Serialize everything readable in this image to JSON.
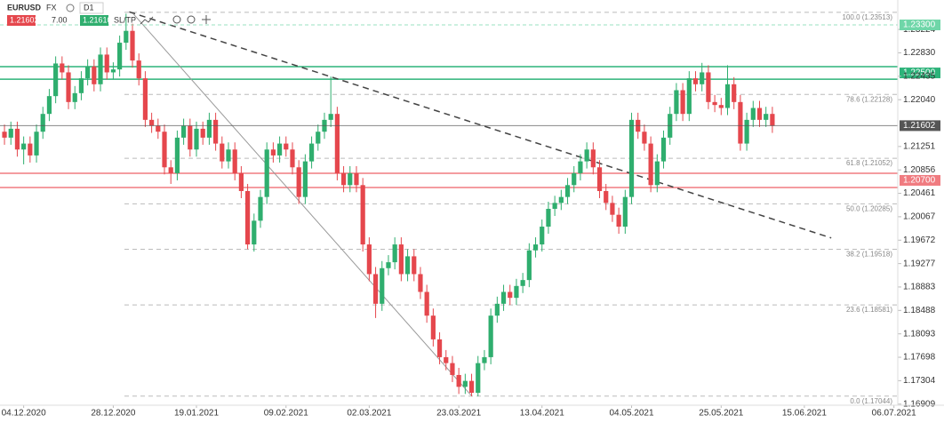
{
  "toolbar": {
    "symbol": "EURUSD",
    "market": "FX",
    "timeframe": "D1",
    "bid": "1.21602",
    "spread": "7.00",
    "ask": "1.21610",
    "sltp": "SL/TP"
  },
  "chart_data": {
    "type": "candlestick",
    "up_color": "#2fae6e",
    "down_color": "#e5474d",
    "xlim": [
      -0.7,
      139.6
    ],
    "ylim": [
      1.1689,
      1.2372
    ],
    "yticks": [
      1.23224,
      1.2283,
      1.22435,
      1.2204,
      1.21251,
      1.20856,
      1.20461,
      1.20067,
      1.19672,
      1.19277,
      1.18883,
      1.18488,
      1.18093,
      1.17698,
      1.17304,
      1.16909
    ],
    "ytick_labels": [
      "1.23224",
      "1.22830",
      "1.22435",
      "1.22040",
      "1.21251",
      "1.20856",
      "1.20461",
      "1.20067",
      "1.19672",
      "1.19277",
      "1.18883",
      "1.18488",
      "1.18093",
      "1.17698",
      "1.17304",
      "1.16909"
    ],
    "xticks": [
      {
        "value": 3,
        "label": "04.12.2020"
      },
      {
        "value": 17,
        "label": "28.12.2020"
      },
      {
        "value": 30,
        "label": "19.01.2021"
      },
      {
        "value": 44,
        "label": "09.02.2021"
      },
      {
        "value": 57,
        "label": "02.03.2021"
      },
      {
        "value": 71,
        "label": "23.03.2021"
      },
      {
        "value": 84,
        "label": "13.04.2021"
      },
      {
        "value": 98,
        "label": "04.05.2021"
      },
      {
        "value": 112,
        "label": "25.05.2021"
      },
      {
        "value": 125,
        "label": "15.06.2021"
      },
      {
        "value": 139,
        "label": "06.07.2021"
      }
    ],
    "fibonacci": [
      {
        "value": 1.23513,
        "label": "100.0 (1.23513)"
      },
      {
        "value": 1.22128,
        "label": "78.6 (1.22128)"
      },
      {
        "value": 1.21052,
        "label": "61.8 (1.21052)"
      },
      {
        "value": 1.20285,
        "label": "50.0 (1.20285)"
      },
      {
        "value": 1.19518,
        "label": "38.2 (1.19518)"
      },
      {
        "value": 1.18581,
        "label": "23.6 (1.18581)"
      },
      {
        "value": 1.17044,
        "label": "0.0 (1.17044)"
      }
    ],
    "price_lines": [
      {
        "value": 1.233,
        "label": "1.23300",
        "color": "#6fd6a8",
        "dashed": true
      },
      {
        "value": 1.21602,
        "label": "1.21602",
        "color": "#555555",
        "dashed": false
      }
    ],
    "zones": [
      {
        "low": 1.22386,
        "high": 1.22596,
        "label": "1.22500",
        "color": "#2db37a"
      },
      {
        "low": 1.2056,
        "high": 1.208,
        "label": "1.20700",
        "color": "#f07b80"
      }
    ],
    "trendlines": [
      {
        "points": [
          [
            19.5,
            1.2352
          ],
          [
            129.2,
            1.1971
          ]
        ],
        "dashed": true
      },
      {
        "points": [
          [
            20.1,
            1.2349
          ],
          [
            72.9,
            1.1706
          ]
        ],
        "dashed": false
      }
    ],
    "candles": [
      [
        1.215,
        1.2162,
        1.2128,
        1.214
      ],
      [
        1.214,
        1.2167,
        1.2128,
        1.2155
      ],
      [
        1.2155,
        1.2167,
        1.2108,
        1.212
      ],
      [
        1.212,
        1.2142,
        1.2095,
        1.213
      ],
      [
        1.213,
        1.2142,
        1.2098,
        1.211
      ],
      [
        1.211,
        1.2162,
        1.2098,
        1.215
      ],
      [
        1.215,
        1.2192,
        1.2138,
        1.218
      ],
      [
        1.218,
        1.2222,
        1.2168,
        1.221
      ],
      [
        1.221,
        1.2277,
        1.2198,
        1.2265
      ],
      [
        1.2265,
        1.2277,
        1.2238,
        1.225
      ],
      [
        1.225,
        1.2262,
        1.2188,
        1.22
      ],
      [
        1.22,
        1.2227,
        1.2188,
        1.2215
      ],
      [
        1.2215,
        1.2252,
        1.2203,
        1.224
      ],
      [
        1.224,
        1.2272,
        1.2228,
        1.226
      ],
      [
        1.226,
        1.2272,
        1.2218,
        1.223
      ],
      [
        1.223,
        1.2292,
        1.2218,
        1.228
      ],
      [
        1.228,
        1.2292,
        1.2238,
        1.225
      ],
      [
        1.225,
        1.2267,
        1.2238,
        1.2255
      ],
      [
        1.2255,
        1.2312,
        1.2243,
        1.23
      ],
      [
        1.23,
        1.2349,
        1.2288,
        1.232
      ],
      [
        1.232,
        1.2332,
        1.2258,
        1.227
      ],
      [
        1.227,
        1.2282,
        1.2228,
        1.224
      ],
      [
        1.224,
        1.2252,
        1.2158,
        1.217
      ],
      [
        1.217,
        1.2182,
        1.2148,
        1.216
      ],
      [
        1.216,
        1.2172,
        1.2138,
        1.215
      ],
      [
        1.215,
        1.2162,
        1.2078,
        1.209
      ],
      [
        1.209,
        1.2102,
        1.2062,
        1.208
      ],
      [
        1.208,
        1.2152,
        1.2068,
        1.214
      ],
      [
        1.214,
        1.2172,
        1.2128,
        1.216
      ],
      [
        1.216,
        1.2172,
        1.2108,
        1.212
      ],
      [
        1.212,
        1.2167,
        1.2108,
        1.2155
      ],
      [
        1.2155,
        1.2167,
        1.2128,
        1.214
      ],
      [
        1.214,
        1.2182,
        1.2128,
        1.217
      ],
      [
        1.217,
        1.2182,
        1.2118,
        1.213
      ],
      [
        1.213,
        1.2142,
        1.2088,
        1.21
      ],
      [
        1.21,
        1.2132,
        1.2088,
        1.212
      ],
      [
        1.212,
        1.2132,
        1.2068,
        1.208
      ],
      [
        1.208,
        1.2092,
        1.2038,
        1.205
      ],
      [
        1.205,
        1.2062,
        1.1952,
        1.196
      ],
      [
        1.196,
        1.2012,
        1.1948,
        1.2
      ],
      [
        1.2,
        1.2052,
        1.1988,
        1.204
      ],
      [
        1.204,
        1.2132,
        1.2028,
        1.212
      ],
      [
        1.212,
        1.2132,
        1.2098,
        1.211
      ],
      [
        1.211,
        1.2142,
        1.2098,
        1.213
      ],
      [
        1.213,
        1.2142,
        1.2108,
        1.212
      ],
      [
        1.212,
        1.2132,
        1.2078,
        1.209
      ],
      [
        1.209,
        1.2102,
        1.2028,
        1.204
      ],
      [
        1.204,
        1.2112,
        1.2028,
        1.21
      ],
      [
        1.21,
        1.2142,
        1.2088,
        1.213
      ],
      [
        1.213,
        1.2162,
        1.2118,
        1.215
      ],
      [
        1.215,
        1.2182,
        1.2138,
        1.217
      ],
      [
        1.217,
        1.2243,
        1.2158,
        1.218
      ],
      [
        1.218,
        1.2192,
        1.2068,
        1.208
      ],
      [
        1.208,
        1.2092,
        1.2048,
        1.206
      ],
      [
        1.206,
        1.2092,
        1.2048,
        1.208
      ],
      [
        1.208,
        1.2092,
        1.2048,
        1.206
      ],
      [
        1.206,
        1.2072,
        1.1948,
        1.196
      ],
      [
        1.196,
        1.1972,
        1.1898,
        1.191
      ],
      [
        1.191,
        1.1922,
        1.1836,
        1.186
      ],
      [
        1.186,
        1.1932,
        1.1848,
        1.192
      ],
      [
        1.192,
        1.1942,
        1.1908,
        1.193
      ],
      [
        1.193,
        1.1972,
        1.1918,
        1.196
      ],
      [
        1.196,
        1.1972,
        1.1898,
        1.191
      ],
      [
        1.191,
        1.1952,
        1.1898,
        1.194
      ],
      [
        1.194,
        1.1952,
        1.1898,
        1.191
      ],
      [
        1.191,
        1.1922,
        1.1868,
        1.188
      ],
      [
        1.188,
        1.1892,
        1.1828,
        1.184
      ],
      [
        1.184,
        1.1852,
        1.1788,
        1.18
      ],
      [
        1.18,
        1.1812,
        1.1758,
        1.177
      ],
      [
        1.177,
        1.1782,
        1.1748,
        1.176
      ],
      [
        1.176,
        1.1772,
        1.1728,
        1.174
      ],
      [
        1.174,
        1.1752,
        1.1708,
        1.172
      ],
      [
        1.172,
        1.1742,
        1.1708,
        1.173
      ],
      [
        1.173,
        1.1742,
        1.1704,
        1.171
      ],
      [
        1.171,
        1.1772,
        1.1704,
        1.176
      ],
      [
        1.176,
        1.1782,
        1.1748,
        1.177
      ],
      [
        1.177,
        1.1852,
        1.1758,
        1.184
      ],
      [
        1.184,
        1.1872,
        1.1828,
        1.186
      ],
      [
        1.186,
        1.1892,
        1.1848,
        1.188
      ],
      [
        1.188,
        1.1892,
        1.1858,
        1.187
      ],
      [
        1.187,
        1.1902,
        1.1858,
        1.189
      ],
      [
        1.189,
        1.1912,
        1.1878,
        1.19
      ],
      [
        1.19,
        1.1962,
        1.1888,
        1.195
      ],
      [
        1.195,
        1.1972,
        1.1938,
        1.196
      ],
      [
        1.196,
        1.2002,
        1.1948,
        1.199
      ],
      [
        1.199,
        1.2032,
        1.1978,
        1.202
      ],
      [
        1.202,
        1.2042,
        1.2008,
        1.203
      ],
      [
        1.203,
        1.2052,
        1.2018,
        1.204
      ],
      [
        1.204,
        1.2072,
        1.2028,
        1.206
      ],
      [
        1.206,
        1.2092,
        1.2048,
        1.208
      ],
      [
        1.208,
        1.2112,
        1.2068,
        1.21
      ],
      [
        1.21,
        1.2132,
        1.2088,
        1.212
      ],
      [
        1.212,
        1.2132,
        1.2078,
        1.209
      ],
      [
        1.209,
        1.2102,
        1.2038,
        1.205
      ],
      [
        1.205,
        1.2062,
        1.2018,
        1.203
      ],
      [
        1.203,
        1.2042,
        1.1998,
        1.201
      ],
      [
        1.201,
        1.2022,
        1.1978,
        1.199
      ],
      [
        1.199,
        1.2052,
        1.1978,
        1.204
      ],
      [
        1.204,
        1.2182,
        1.2028,
        1.217
      ],
      [
        1.217,
        1.2182,
        1.2138,
        1.215
      ],
      [
        1.215,
        1.2162,
        1.2118,
        1.213
      ],
      [
        1.213,
        1.2142,
        1.2048,
        1.206
      ],
      [
        1.206,
        1.2112,
        1.2048,
        1.21
      ],
      [
        1.21,
        1.2152,
        1.2088,
        1.214
      ],
      [
        1.214,
        1.2192,
        1.2128,
        1.218
      ],
      [
        1.218,
        1.2232,
        1.2168,
        1.222
      ],
      [
        1.222,
        1.2232,
        1.2168,
        1.218
      ],
      [
        1.218,
        1.2252,
        1.2168,
        1.224
      ],
      [
        1.224,
        1.2252,
        1.2218,
        1.223
      ],
      [
        1.223,
        1.2266,
        1.2218,
        1.225
      ],
      [
        1.225,
        1.2262,
        1.2188,
        1.22
      ],
      [
        1.22,
        1.2212,
        1.2183,
        1.2195
      ],
      [
        1.2195,
        1.2207,
        1.2178,
        1.219
      ],
      [
        1.219,
        1.2262,
        1.2178,
        1.223
      ],
      [
        1.223,
        1.2242,
        1.2188,
        1.22
      ],
      [
        1.22,
        1.2212,
        1.2118,
        1.213
      ],
      [
        1.213,
        1.2182,
        1.2118,
        1.217
      ],
      [
        1.217,
        1.2202,
        1.2158,
        1.219
      ],
      [
        1.219,
        1.2202,
        1.2158,
        1.217
      ],
      [
        1.217,
        1.2192,
        1.2158,
        1.218
      ],
      [
        1.218,
        1.2192,
        1.2148,
        1.216
      ]
    ]
  }
}
